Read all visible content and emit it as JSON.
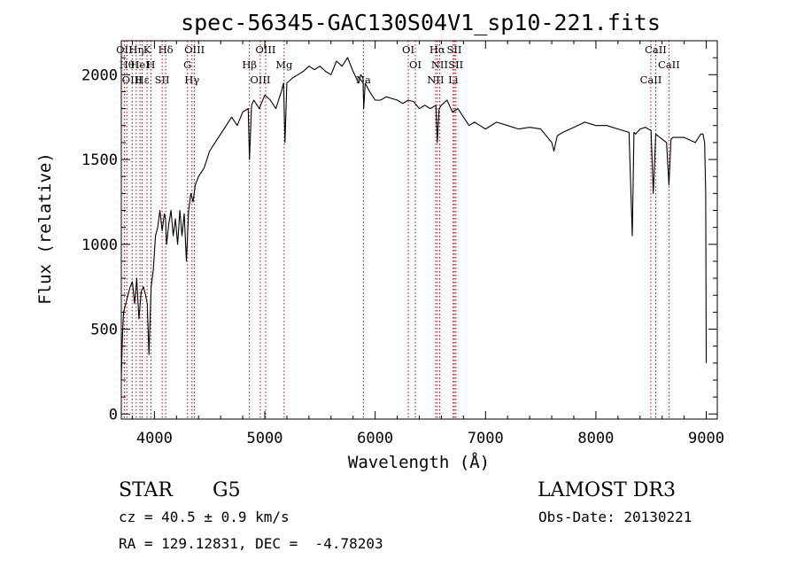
{
  "chart_data": {
    "type": "line",
    "title": "spec-56345-GAC130S04V1_sp10-221.fits",
    "xlabel": "Wavelength (Å)",
    "ylabel": "Flux (relative)",
    "xlim": [
      3700,
      9100
    ],
    "ylim": [
      -30,
      2200
    ],
    "xticks": [
      4000,
      5000,
      6000,
      7000,
      8000,
      9000
    ],
    "yticks": [
      0,
      500,
      1000,
      1500,
      2000
    ],
    "grid": false,
    "series": [
      {
        "color": "#000000",
        "x": [
          3700,
          3710,
          3720,
          3740,
          3760,
          3780,
          3800,
          3820,
          3840,
          3860,
          3880,
          3900,
          3920,
          3935,
          3950,
          3970,
          3990,
          4010,
          4030,
          4050,
          4070,
          4090,
          4100,
          4110,
          4130,
          4150,
          4170,
          4190,
          4210,
          4230,
          4250,
          4270,
          4290,
          4310,
          4330,
          4350,
          4370,
          4400,
          4450,
          4500,
          4550,
          4600,
          4650,
          4700,
          4750,
          4800,
          4850,
          4861,
          4880,
          4900,
          4950,
          5000,
          5050,
          5100,
          5150,
          5170,
          5183,
          5200,
          5250,
          5300,
          5350,
          5400,
          5450,
          5500,
          5550,
          5600,
          5650,
          5700,
          5750,
          5800,
          5850,
          5870,
          5890,
          5896,
          5910,
          5950,
          6000,
          6050,
          6100,
          6150,
          6200,
          6250,
          6300,
          6350,
          6400,
          6450,
          6500,
          6550,
          6563,
          6580,
          6600,
          6650,
          6700,
          6750,
          6800,
          6850,
          6900,
          6950,
          7000,
          7100,
          7200,
          7300,
          7400,
          7500,
          7550,
          7600,
          7620,
          7650,
          7700,
          7800,
          7900,
          8000,
          8100,
          8200,
          8300,
          8330,
          8345,
          8360,
          8400,
          8450,
          8500,
          8520,
          8542,
          8560,
          8600,
          8640,
          8662,
          8680,
          8700,
          8800,
          8900,
          8950,
          8970,
          8985,
          8995,
          9000
        ],
        "y": [
          200,
          450,
          600,
          650,
          700,
          750,
          780,
          650,
          800,
          560,
          720,
          750,
          700,
          650,
          350,
          750,
          850,
          1050,
          1100,
          1200,
          1080,
          1180,
          1150,
          1000,
          1120,
          1200,
          1050,
          1150,
          1000,
          1200,
          1050,
          1180,
          900,
          1200,
          1300,
          1250,
          1350,
          1400,
          1450,
          1550,
          1600,
          1650,
          1700,
          1750,
          1700,
          1780,
          1800,
          1500,
          1820,
          1850,
          1800,
          1880,
          1850,
          1800,
          1900,
          1950,
          1600,
          1950,
          1980,
          2000,
          2020,
          2050,
          2030,
          2050,
          2020,
          2000,
          2080,
          2050,
          2100,
          2020,
          1950,
          2000,
          1980,
          1800,
          1950,
          1900,
          1850,
          1850,
          1870,
          1860,
          1850,
          1830,
          1850,
          1840,
          1800,
          1820,
          1800,
          1820,
          1600,
          1800,
          1820,
          1850,
          1780,
          1800,
          1750,
          1700,
          1720,
          1700,
          1680,
          1720,
          1700,
          1680,
          1690,
          1680,
          1640,
          1600,
          1550,
          1640,
          1660,
          1690,
          1720,
          1700,
          1700,
          1680,
          1660,
          1050,
          1660,
          1650,
          1680,
          1690,
          1670,
          1300,
          1650,
          1640,
          1620,
          1600,
          1350,
          1620,
          1630,
          1630,
          1600,
          1650,
          1650,
          1600,
          1300,
          300
        ]
      }
    ],
    "lines": [
      {
        "wl": 3727,
        "label": "OII"
      },
      {
        "wl": 3750,
        "label": "Hθ"
      },
      {
        "wl": 3798,
        "label": "OIII"
      },
      {
        "wl": 3835,
        "label": "Hη"
      },
      {
        "wl": 3869,
        "label": "HeI"
      },
      {
        "wl": 3889,
        "label": "Hε"
      },
      {
        "wl": 3933,
        "label": "K"
      },
      {
        "wl": 3968,
        "label": "H"
      },
      {
        "wl": 4070,
        "label": "SII"
      },
      {
        "wl": 4102,
        "label": "Hδ"
      },
      {
        "wl": 4300,
        "label": "G"
      },
      {
        "wl": 4340,
        "label": "Hγ"
      },
      {
        "wl": 4363,
        "label": "OIII"
      },
      {
        "wl": 4861,
        "label": "Hβ"
      },
      {
        "wl": 4959,
        "label": "OIII"
      },
      {
        "wl": 5007,
        "label": "OIII"
      },
      {
        "wl": 5175,
        "label": "Mg"
      },
      {
        "wl": 5894,
        "label": "Na"
      },
      {
        "wl": 6300,
        "label": "OI"
      },
      {
        "wl": 6364,
        "label": "OI"
      },
      {
        "wl": 6548,
        "label": "NII"
      },
      {
        "wl": 6563,
        "label": "Hα"
      },
      {
        "wl": 6584,
        "label": "NII"
      },
      {
        "wl": 6707,
        "label": "Li"
      },
      {
        "wl": 6717,
        "label": "SII"
      },
      {
        "wl": 6731,
        "label": "SII"
      },
      {
        "wl": 8498,
        "label": "CaII"
      },
      {
        "wl": 8542,
        "label": "CaII"
      },
      {
        "wl": 8662,
        "label": "CaII"
      }
    ]
  },
  "info": {
    "class": "STAR",
    "subclass": "G5",
    "survey": "LAMOST DR3",
    "cz": "cz = 40.5 ± 0.9 km/s",
    "obs_date": "Obs-Date: 20130221",
    "radec": "RA = 129.12831, DEC =  -4.78203"
  }
}
